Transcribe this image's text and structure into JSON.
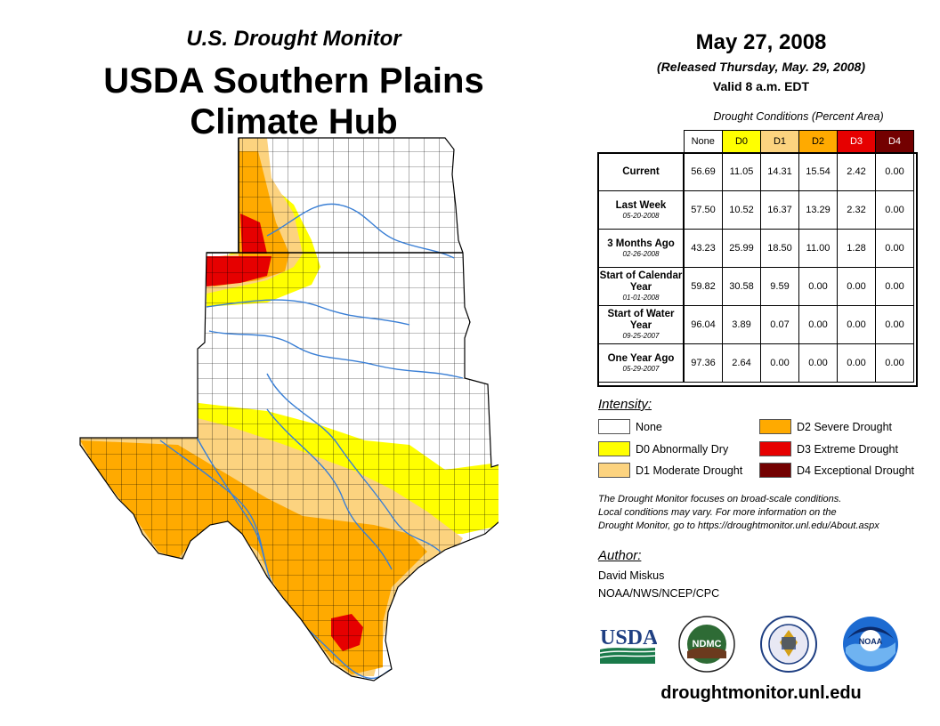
{
  "header": {
    "subtitle": "U.S. Drought Monitor",
    "title_line1": "USDA Southern Plains",
    "title_line2": "Climate Hub"
  },
  "release": {
    "date": "May 27, 2008",
    "released": "(Released Thursday, May. 29, 2008)",
    "valid": "Valid 8 a.m. EDT"
  },
  "table": {
    "caption": "Drought Conditions (Percent Area)",
    "columns": [
      "None",
      "D0",
      "D1",
      "D2",
      "D3",
      "D4"
    ],
    "rows": [
      {
        "label": "Current",
        "date": "",
        "values": [
          "56.69",
          "11.05",
          "14.31",
          "15.54",
          "2.42",
          "0.00"
        ]
      },
      {
        "label": "Last Week",
        "date": "05-20-2008",
        "values": [
          "57.50",
          "10.52",
          "16.37",
          "13.29",
          "2.32",
          "0.00"
        ]
      },
      {
        "label": "3 Months Ago",
        "date": "02-26-2008",
        "values": [
          "43.23",
          "25.99",
          "18.50",
          "11.00",
          "1.28",
          "0.00"
        ]
      },
      {
        "label": "Start of Calendar Year",
        "date": "01-01-2008",
        "values": [
          "59.82",
          "30.58",
          "9.59",
          "0.00",
          "0.00",
          "0.00"
        ]
      },
      {
        "label": "Start of Water Year",
        "date": "09-25-2007",
        "values": [
          "96.04",
          "3.89",
          "0.07",
          "0.00",
          "0.00",
          "0.00"
        ]
      },
      {
        "label": "One Year Ago",
        "date": "05-29-2007",
        "values": [
          "97.36",
          "2.64",
          "0.00",
          "0.00",
          "0.00",
          "0.00"
        ]
      }
    ]
  },
  "legend": {
    "title": "Intensity:",
    "items": [
      {
        "label": "None",
        "color": "#ffffff"
      },
      {
        "label": "D0 Abnormally Dry",
        "color": "#ffff00"
      },
      {
        "label": "D1 Moderate Drought",
        "color": "#fcd37f"
      },
      {
        "label": "D2 Severe Drought",
        "color": "#ffaa00"
      },
      {
        "label": "D3 Extreme Drought",
        "color": "#e60000"
      },
      {
        "label": "D4 Exceptional Drought",
        "color": "#730000"
      }
    ]
  },
  "header_colors": [
    "#ffffff",
    "#ffff00",
    "#fcd37f",
    "#ffaa00",
    "#e60000",
    "#730000"
  ],
  "note": {
    "line1": "The Drought Monitor focuses on broad-scale conditions.",
    "line2": "Local conditions may vary. For more information on the",
    "line3": "Drought Monitor, go to https://droughtmonitor.unl.edu/About.aspx"
  },
  "author": {
    "title": "Author:",
    "name": "David Miskus",
    "org": "NOAA/NWS/NCEP/CPC"
  },
  "logos": {
    "usda": "USDA",
    "ndmc": "NDMC",
    "noaa": "NOAA"
  },
  "footer": {
    "url": "droughtmonitor.unl.edu"
  }
}
